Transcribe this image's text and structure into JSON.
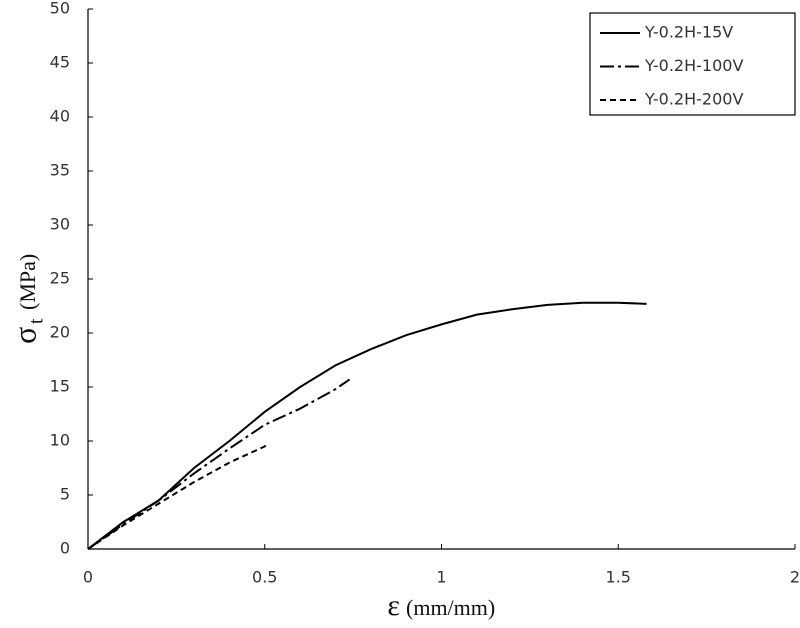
{
  "chart_data": {
    "type": "line",
    "xlabel": {
      "symbol": "ε",
      "unit": "(mm/mm)"
    },
    "ylabel": {
      "symbol": "σ",
      "subscript": "t",
      "unit": "(MPa)"
    },
    "xlim": [
      0,
      2
    ],
    "xticks": [
      0,
      0.5,
      1,
      1.5,
      2
    ],
    "ylim": [
      0,
      50
    ],
    "yticks": [
      0,
      5,
      10,
      15,
      20,
      25,
      30,
      35,
      40,
      45,
      50
    ],
    "grid": false,
    "legend": "upper right",
    "series": [
      {
        "name": "Y-0.2H-15V",
        "color": "#000000",
        "dash": "solid",
        "x": [
          0,
          0.1,
          0.2,
          0.3,
          0.4,
          0.5,
          0.6,
          0.7,
          0.8,
          0.9,
          1.0,
          1.1,
          1.2,
          1.3,
          1.4,
          1.5,
          1.58
        ],
        "values": [
          0,
          2.5,
          4.5,
          7.5,
          10,
          12.7,
          15,
          17,
          18.5,
          19.8,
          20.8,
          21.7,
          22.2,
          22.6,
          22.8,
          22.8,
          22.7
        ]
      },
      {
        "name": "Y-0.2H-100V",
        "color": "#000000",
        "dash": "dashdot",
        "x": [
          0,
          0.1,
          0.2,
          0.3,
          0.4,
          0.5,
          0.6,
          0.7,
          0.74
        ],
        "values": [
          0,
          2.3,
          4.5,
          7,
          9.3,
          11.5,
          13,
          14.8,
          15.7
        ]
      },
      {
        "name": "Y-0.2H-200V",
        "color": "#000000",
        "dash": "dashed",
        "x": [
          0,
          0.1,
          0.2,
          0.3,
          0.4,
          0.5,
          0.51
        ],
        "values": [
          0,
          2.2,
          4.2,
          6.2,
          8,
          9.5,
          9.8
        ]
      }
    ]
  }
}
